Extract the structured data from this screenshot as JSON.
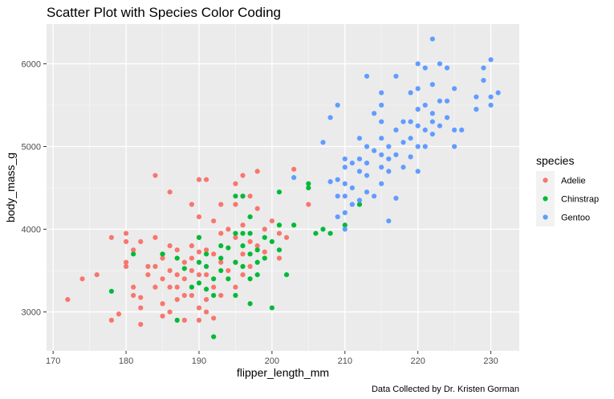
{
  "chart_data": {
    "type": "scatter",
    "title": "Scatter Plot with Species Color Coding",
    "xlabel": "flipper_length_mm",
    "ylabel": "body_mass_g",
    "caption": "Data Collected by Dr. Kristen Gorman",
    "xlim": [
      169.1,
      233.9
    ],
    "ylim": [
      2530,
      6480
    ],
    "x_ticks": [
      170,
      180,
      190,
      200,
      210,
      220,
      230
    ],
    "y_ticks": [
      3000,
      4000,
      5000,
      6000
    ],
    "grid": true,
    "legend_title": "species",
    "legend_position": "right",
    "series": [
      {
        "name": "Adelie",
        "color": "#F8766D",
        "points": [
          [
            172,
            3150
          ],
          [
            174,
            3400
          ],
          [
            176,
            3450
          ],
          [
            178,
            3900
          ],
          [
            178,
            2900
          ],
          [
            179,
            2975
          ],
          [
            180,
            3950
          ],
          [
            180,
            3850
          ],
          [
            180,
            3600
          ],
          [
            180,
            3550
          ],
          [
            181,
            3300
          ],
          [
            181,
            3200
          ],
          [
            181,
            3750
          ],
          [
            182,
            3175
          ],
          [
            182,
            3050
          ],
          [
            182,
            2850
          ],
          [
            182,
            3850
          ],
          [
            183,
            3550
          ],
          [
            183,
            3450
          ],
          [
            184,
            3550
          ],
          [
            184,
            4650
          ],
          [
            184,
            3900
          ],
          [
            184,
            3300
          ],
          [
            185,
            3700
          ],
          [
            185,
            3650
          ],
          [
            185,
            3400
          ],
          [
            185,
            3100
          ],
          [
            185,
            2950
          ],
          [
            186,
            4450
          ],
          [
            186,
            3800
          ],
          [
            186,
            3500
          ],
          [
            186,
            3300
          ],
          [
            186,
            3000
          ],
          [
            187,
            3450
          ],
          [
            187,
            3150
          ],
          [
            187,
            3300
          ],
          [
            187,
            3750
          ],
          [
            188,
            3600
          ],
          [
            188,
            3400
          ],
          [
            188,
            2900
          ],
          [
            188,
            3200
          ],
          [
            189,
            4300
          ],
          [
            189,
            3800
          ],
          [
            189,
            3650
          ],
          [
            189,
            3500
          ],
          [
            189,
            3200
          ],
          [
            190,
            4600
          ],
          [
            190,
            4150
          ],
          [
            190,
            3900
          ],
          [
            190,
            3725
          ],
          [
            190,
            3450
          ],
          [
            190,
            3050
          ],
          [
            190,
            2900
          ],
          [
            191,
            4600
          ],
          [
            191,
            3750
          ],
          [
            191,
            3450
          ],
          [
            191,
            3150
          ],
          [
            191,
            3000
          ],
          [
            192,
            4100
          ],
          [
            192,
            3700
          ],
          [
            192,
            3300
          ],
          [
            192,
            2925
          ],
          [
            193,
            4300
          ],
          [
            193,
            3950
          ],
          [
            193,
            3600
          ],
          [
            193,
            3200
          ],
          [
            194,
            4000
          ],
          [
            194,
            3500
          ],
          [
            195,
            4550
          ],
          [
            195,
            4300
          ],
          [
            195,
            3900
          ],
          [
            195,
            3600
          ],
          [
            195,
            3300
          ],
          [
            196,
            4650
          ],
          [
            196,
            4400
          ],
          [
            196,
            4050
          ],
          [
            196,
            3700
          ],
          [
            196,
            3450
          ],
          [
            197,
            4400
          ],
          [
            197,
            3850
          ],
          [
            197,
            3550
          ],
          [
            198,
            4700
          ],
          [
            198,
            4250
          ],
          [
            198,
            3800
          ],
          [
            199,
            4000
          ],
          [
            199,
            3725
          ],
          [
            200,
            4100
          ],
          [
            201,
            3950
          ],
          [
            201,
            3650
          ],
          [
            202,
            3900
          ],
          [
            203,
            4725
          ],
          [
            205,
            4300
          ]
        ]
      },
      {
        "name": "Chinstrap",
        "color": "#00BA38",
        "points": [
          [
            178,
            3250
          ],
          [
            181,
            3700
          ],
          [
            185,
            3700
          ],
          [
            187,
            3650
          ],
          [
            187,
            2900
          ],
          [
            188,
            3525
          ],
          [
            189,
            3300
          ],
          [
            190,
            3900
          ],
          [
            190,
            3600
          ],
          [
            190,
            3350
          ],
          [
            191,
            3700
          ],
          [
            191,
            3550
          ],
          [
            191,
            3275
          ],
          [
            192,
            3400
          ],
          [
            192,
            3200
          ],
          [
            192,
            2700
          ],
          [
            193,
            3800
          ],
          [
            193,
            3500
          ],
          [
            193,
            3650
          ],
          [
            194,
            3775
          ],
          [
            194,
            3400
          ],
          [
            195,
            4400
          ],
          [
            195,
            3950
          ],
          [
            195,
            3600
          ],
          [
            195,
            3200
          ],
          [
            196,
            4400
          ],
          [
            196,
            3950
          ],
          [
            196,
            3800
          ],
          [
            196,
            3550
          ],
          [
            197,
            4150
          ],
          [
            197,
            3950
          ],
          [
            197,
            3700
          ],
          [
            197,
            3400
          ],
          [
            197,
            3100
          ],
          [
            198,
            3750
          ],
          [
            198,
            3600
          ],
          [
            198,
            3450
          ],
          [
            199,
            3900
          ],
          [
            199,
            3650
          ],
          [
            200,
            3850
          ],
          [
            200,
            3050
          ],
          [
            201,
            4450
          ],
          [
            201,
            4050
          ],
          [
            201,
            3750
          ],
          [
            202,
            3450
          ],
          [
            203,
            4050
          ],
          [
            205,
            4550
          ],
          [
            205,
            4500
          ],
          [
            206,
            3950
          ],
          [
            207,
            4000
          ],
          [
            208,
            3950
          ],
          [
            210,
            4050
          ],
          [
            212,
            4300
          ]
        ]
      },
      {
        "name": "Gentoo",
        "color": "#619CFF",
        "points": [
          [
            203,
            4625
          ],
          [
            207,
            5050
          ],
          [
            208,
            5350
          ],
          [
            208,
            4575
          ],
          [
            209,
            5500
          ],
          [
            209,
            4600
          ],
          [
            209,
            4400
          ],
          [
            209,
            4150
          ],
          [
            210,
            4850
          ],
          [
            210,
            4750
          ],
          [
            210,
            4550
          ],
          [
            210,
            4400
          ],
          [
            210,
            4200
          ],
          [
            210,
            4000
          ],
          [
            211,
            4800
          ],
          [
            211,
            4500
          ],
          [
            211,
            4300
          ],
          [
            212,
            5100
          ],
          [
            212,
            4850
          ],
          [
            212,
            4700
          ],
          [
            212,
            4350
          ],
          [
            213,
            5850
          ],
          [
            213,
            5000
          ],
          [
            213,
            4800
          ],
          [
            213,
            4650
          ],
          [
            213,
            4450
          ],
          [
            214,
            5400
          ],
          [
            214,
            4950
          ],
          [
            214,
            4400
          ],
          [
            215,
            5650
          ],
          [
            215,
            5500
          ],
          [
            215,
            5300
          ],
          [
            215,
            5100
          ],
          [
            215,
            4900
          ],
          [
            215,
            4750
          ],
          [
            215,
            4550
          ],
          [
            216,
            5000
          ],
          [
            216,
            4850
          ],
          [
            216,
            4700
          ],
          [
            216,
            4100
          ],
          [
            217,
            5850
          ],
          [
            217,
            5200
          ],
          [
            217,
            4900
          ],
          [
            217,
            4375
          ],
          [
            218,
            5300
          ],
          [
            218,
            5050
          ],
          [
            218,
            4750
          ],
          [
            219,
            5650
          ],
          [
            219,
            5300
          ],
          [
            219,
            5100
          ],
          [
            219,
            4875
          ],
          [
            220,
            6000
          ],
          [
            220,
            5700
          ],
          [
            220,
            5450
          ],
          [
            220,
            5250
          ],
          [
            220,
            5000
          ],
          [
            220,
            4700
          ],
          [
            221,
            5950
          ],
          [
            221,
            5500
          ],
          [
            221,
            5200
          ],
          [
            221,
            5000
          ],
          [
            222,
            6300
          ],
          [
            222,
            5750
          ],
          [
            222,
            5400
          ],
          [
            222,
            5300
          ],
          [
            222,
            5150
          ],
          [
            223,
            6000
          ],
          [
            223,
            5550
          ],
          [
            223,
            5250
          ],
          [
            224,
            5950
          ],
          [
            224,
            5550
          ],
          [
            224,
            5350
          ],
          [
            225,
            5700
          ],
          [
            225,
            5200
          ],
          [
            225,
            5000
          ],
          [
            226,
            5200
          ],
          [
            228,
            5600
          ],
          [
            228,
            5450
          ],
          [
            229,
            5950
          ],
          [
            229,
            5800
          ],
          [
            230,
            6050
          ],
          [
            230,
            5600
          ],
          [
            230,
            5500
          ],
          [
            231,
            5650
          ]
        ]
      }
    ]
  }
}
